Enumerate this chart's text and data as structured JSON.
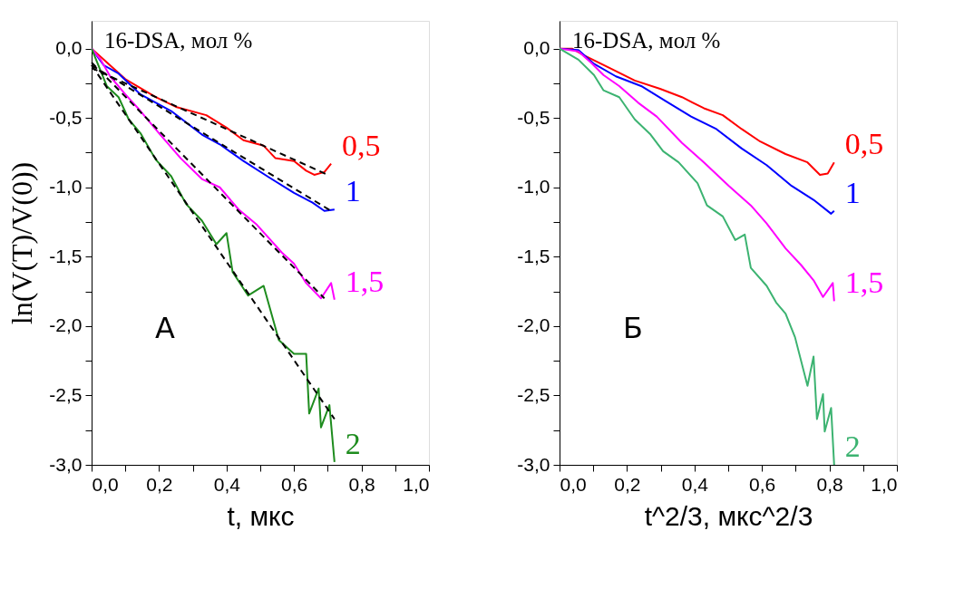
{
  "chart_data": [
    {
      "type": "line",
      "xlabel": "t, мкс",
      "ylabel": "ln(V(T)/V(0))",
      "annotations": [
        "16-DSA, мол %",
        "A"
      ],
      "xlim": [
        0,
        1.0
      ],
      "ylim": [
        -3.0,
        0.2
      ],
      "xticks": [
        {
          "value": 0,
          "label": "0,0"
        },
        {
          "value": 0.1,
          "label": null
        },
        {
          "value": 0.2,
          "label": "0,2"
        },
        {
          "value": 0.3,
          "label": null
        },
        {
          "value": 0.4,
          "label": "0,4"
        },
        {
          "value": 0.5,
          "label": null
        },
        {
          "value": 0.6,
          "label": "0,6"
        },
        {
          "value": 0.7,
          "label": null
        },
        {
          "value": 0.8,
          "label": "0,8"
        },
        {
          "value": 0.9,
          "label": null
        },
        {
          "value": 1.0,
          "label": "1,0"
        }
      ],
      "yticks": [
        {
          "value": 0,
          "label": "0,0"
        },
        {
          "value": -0.25,
          "label": null
        },
        {
          "value": -0.5,
          "label": "-0,5"
        },
        {
          "value": -0.75,
          "label": null
        },
        {
          "value": -1.0,
          "label": "-1,0"
        },
        {
          "value": -1.25,
          "label": null
        },
        {
          "value": -1.5,
          "label": "-1,5"
        },
        {
          "value": -1.75,
          "label": null
        },
        {
          "value": -2.0,
          "label": "-2,0"
        },
        {
          "value": -2.25,
          "label": null
        },
        {
          "value": -2.5,
          "label": "-2,5"
        },
        {
          "value": -2.75,
          "label": null
        },
        {
          "value": -3.0,
          "label": "-3,0"
        }
      ],
      "grid": false,
      "line_style": "solid",
      "marker": "none",
      "series": [
        {
          "name": "0,5",
          "color": "#ff0000",
          "x": [
            0,
            0.027,
            0.1,
            0.19,
            0.25,
            0.34,
            0.4,
            0.45,
            0.51,
            0.545,
            0.6,
            0.636,
            0.66,
            0.69,
            0.71
          ],
          "values": [
            0,
            -0.06,
            -0.22,
            -0.35,
            -0.42,
            -0.48,
            -0.57,
            -0.66,
            -0.7,
            -0.79,
            -0.81,
            -0.88,
            -0.91,
            -0.89,
            -0.83
          ]
        },
        {
          "name": "1",
          "color": "#0000ff",
          "x": [
            0,
            0.036,
            0.08,
            0.145,
            0.236,
            0.327,
            0.38,
            0.45,
            0.527,
            0.6,
            0.655,
            0.69,
            0.72
          ],
          "values": [
            0,
            -0.12,
            -0.18,
            -0.33,
            -0.45,
            -0.62,
            -0.69,
            -0.81,
            -0.93,
            -1.04,
            -1.11,
            -1.17,
            -1.16
          ]
        },
        {
          "name": "1,5",
          "color": "#ff00ff",
          "x": [
            0,
            0.027,
            0.055,
            0.1,
            0.145,
            0.2,
            0.264,
            0.327,
            0.38,
            0.436,
            0.49,
            0.527,
            0.564,
            0.6,
            0.636,
            0.664,
            0.68,
            0.71,
            0.72
          ],
          "values": [
            0,
            -0.08,
            -0.2,
            -0.33,
            -0.45,
            -0.61,
            -0.79,
            -0.94,
            -1.0,
            -1.16,
            -1.27,
            -1.37,
            -1.47,
            -1.55,
            -1.69,
            -1.76,
            -1.8,
            -1.69,
            -1.81
          ]
        },
        {
          "name": "2",
          "color": "#1e8c1e",
          "x": [
            0,
            0.045,
            0.08,
            0.11,
            0.145,
            0.19,
            0.236,
            0.28,
            0.327,
            0.37,
            0.4,
            0.418,
            0.464,
            0.51,
            0.555,
            0.6,
            0.636,
            0.645,
            0.673,
            0.68,
            0.705,
            0.72
          ],
          "values": [
            0,
            -0.27,
            -0.35,
            -0.51,
            -0.61,
            -0.8,
            -0.92,
            -1.12,
            -1.24,
            -1.41,
            -1.33,
            -1.61,
            -1.78,
            -1.71,
            -2.1,
            -2.2,
            -2.2,
            -2.63,
            -2.45,
            -2.73,
            -2.57,
            -2.98
          ]
        },
        {
          "type": "line",
          "line_style": "dashed",
          "color": "#000000",
          "x": [
            0,
            0.7
          ],
          "values": [
            -0.14,
            -0.91
          ]
        },
        {
          "type": "line",
          "line_style": "dashed",
          "color": "#000000",
          "x": [
            0,
            0.71
          ],
          "values": [
            -0.12,
            -1.17
          ]
        },
        {
          "type": "line",
          "line_style": "dashed",
          "color": "#000000",
          "x": [
            0,
            0.69
          ],
          "values": [
            -0.1,
            -1.8
          ]
        },
        {
          "type": "line",
          "line_style": "dashed",
          "color": "#000000",
          "x": [
            0,
            0.72
          ],
          "values": [
            -0.12,
            -2.67
          ]
        }
      ]
    },
    {
      "type": "line",
      "xlabel": "t^2/3, мкс^2/3",
      "annotations": [
        "16-DSA, мол %",
        "Б"
      ],
      "xlim": [
        0,
        1.0
      ],
      "ylim": [
        -3.0,
        0.2
      ],
      "xticks": [
        {
          "value": 0,
          "label": "0,0"
        },
        {
          "value": 0.1,
          "label": null
        },
        {
          "value": 0.2,
          "label": "0,2"
        },
        {
          "value": 0.3,
          "label": null
        },
        {
          "value": 0.4,
          "label": "0,4"
        },
        {
          "value": 0.5,
          "label": null
        },
        {
          "value": 0.6,
          "label": "0,6"
        },
        {
          "value": 0.7,
          "label": null
        },
        {
          "value": 0.8,
          "label": "0,8"
        },
        {
          "value": 0.9,
          "label": null
        },
        {
          "value": 1.0,
          "label": "1,0"
        }
      ],
      "yticks": [
        {
          "value": 0,
          "label": "0,0"
        },
        {
          "value": -0.25,
          "label": null
        },
        {
          "value": -0.5,
          "label": "-0,5"
        },
        {
          "value": -0.75,
          "label": null
        },
        {
          "value": -1.0,
          "label": "-1,0"
        },
        {
          "value": -1.25,
          "label": null
        },
        {
          "value": -1.5,
          "label": "-1,5"
        },
        {
          "value": -1.75,
          "label": null
        },
        {
          "value": -2.0,
          "label": "-2,0"
        },
        {
          "value": -2.25,
          "label": null
        },
        {
          "value": -2.5,
          "label": "-2,5"
        },
        {
          "value": -2.75,
          "label": null
        },
        {
          "value": -3.0,
          "label": "-3,0"
        }
      ],
      "grid": false,
      "line_style": "solid",
      "marker": "none",
      "series": [
        {
          "name": "0,5",
          "color": "#ff0000",
          "x": [
            0,
            0.037,
            0.074,
            0.149,
            0.223,
            0.298,
            0.363,
            0.428,
            0.484,
            0.54,
            0.595,
            0.67,
            0.735,
            0.772,
            0.795,
            0.814
          ],
          "values": [
            0,
            0,
            -0.05,
            -0.14,
            -0.23,
            -0.29,
            -0.35,
            -0.43,
            -0.48,
            -0.58,
            -0.67,
            -0.76,
            -0.82,
            -0.91,
            -0.9,
            -0.82
          ]
        },
        {
          "name": "1",
          "color": "#0000ff",
          "x": [
            0,
            0.056,
            0.102,
            0.167,
            0.242,
            0.316,
            0.39,
            0.465,
            0.54,
            0.614,
            0.688,
            0.753,
            0.805,
            0.814
          ],
          "values": [
            0,
            -0.01,
            -0.11,
            -0.2,
            -0.27,
            -0.38,
            -0.49,
            -0.58,
            -0.72,
            -0.84,
            -0.99,
            -1.09,
            -1.19,
            -1.17
          ]
        },
        {
          "name": "1,5",
          "color": "#ff00ff",
          "x": [
            0,
            0.056,
            0.093,
            0.13,
            0.177,
            0.233,
            0.288,
            0.363,
            0.428,
            0.502,
            0.567,
            0.614,
            0.67,
            0.716,
            0.753,
            0.781,
            0.81,
            0.814
          ],
          "values": [
            0,
            -0.02,
            -0.1,
            -0.19,
            -0.27,
            -0.39,
            -0.49,
            -0.68,
            -0.82,
            -0.99,
            -1.13,
            -1.26,
            -1.44,
            -1.56,
            -1.67,
            -1.79,
            -1.69,
            -1.82
          ]
        },
        {
          "name": "2",
          "color": "#3cb371",
          "x": [
            0,
            0.056,
            0.102,
            0.13,
            0.177,
            0.223,
            0.27,
            0.307,
            0.353,
            0.409,
            0.437,
            0.484,
            0.521,
            0.549,
            0.567,
            0.614,
            0.642,
            0.67,
            0.698,
            0.735,
            0.753,
            0.763,
            0.781,
            0.786,
            0.805,
            0.814
          ],
          "values": [
            0,
            -0.08,
            -0.19,
            -0.3,
            -0.35,
            -0.51,
            -0.62,
            -0.74,
            -0.82,
            -0.97,
            -1.13,
            -1.21,
            -1.38,
            -1.34,
            -1.58,
            -1.71,
            -1.83,
            -1.91,
            -2.08,
            -2.43,
            -2.22,
            -2.67,
            -2.49,
            -2.76,
            -2.59,
            -3.0
          ]
        }
      ]
    }
  ]
}
